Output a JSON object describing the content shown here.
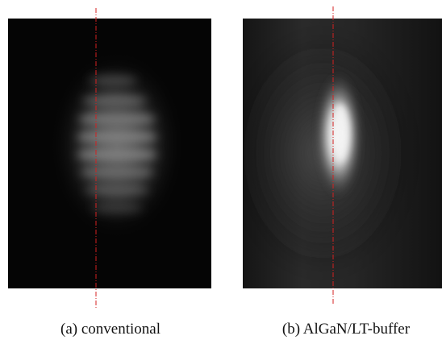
{
  "figure": {
    "panels": [
      {
        "caption": "(a) conventional"
      },
      {
        "caption": "(b) AlGaN/LT-buffer"
      }
    ]
  }
}
